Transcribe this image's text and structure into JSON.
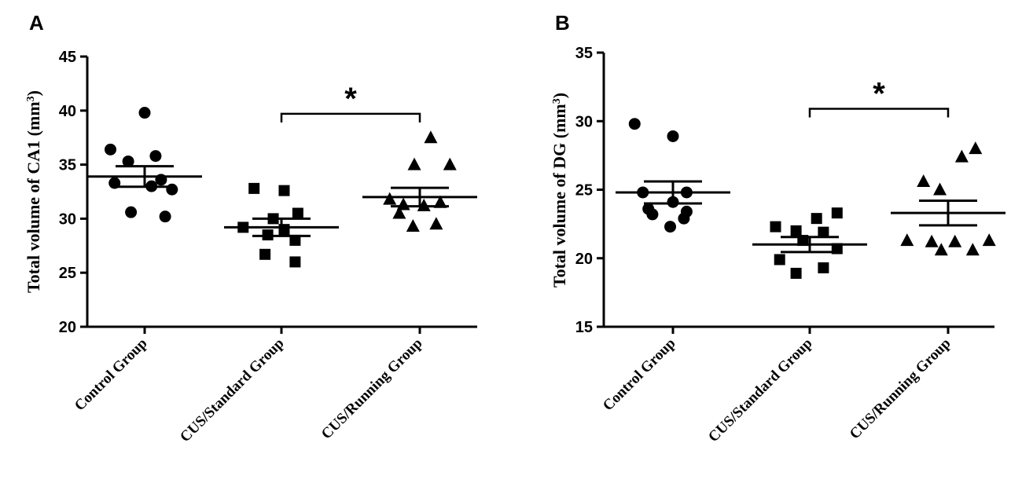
{
  "chart_data": [
    {
      "panel": "A",
      "type": "scatter",
      "ylabel": "Total volume of CA1 (mm",
      "ylabel_sup": "3",
      "ylabel_close": ")",
      "ylim": [
        20,
        45
      ],
      "yticks": [
        20,
        25,
        30,
        35,
        40,
        45
      ],
      "categories": [
        "Control Group",
        "CUS/Standard Group",
        "CUS/Running Group"
      ],
      "markers": [
        "circle",
        "square",
        "triangle"
      ],
      "series": [
        {
          "points": [
            [
              -0.25,
              36.4
            ],
            [
              0.0,
              39.8
            ],
            [
              0.08,
              35.8
            ],
            [
              -0.12,
              35.3
            ],
            [
              0.12,
              33.6
            ],
            [
              -0.22,
              33.3
            ],
            [
              0.05,
              33.0
            ],
            [
              0.2,
              32.7
            ],
            [
              -0.1,
              30.6
            ],
            [
              0.15,
              30.2
            ]
          ],
          "mean": 33.9,
          "sem": 0.95
        },
        {
          "points": [
            [
              -0.2,
              32.8
            ],
            [
              0.02,
              32.6
            ],
            [
              0.12,
              30.5
            ],
            [
              -0.06,
              30.0
            ],
            [
              0.02,
              29.0
            ],
            [
              -0.28,
              29.2
            ],
            [
              -0.1,
              28.5
            ],
            [
              0.1,
              28.0
            ],
            [
              -0.12,
              26.7
            ],
            [
              0.1,
              26.0
            ]
          ],
          "mean": 29.2,
          "sem": 0.8
        },
        {
          "points": [
            [
              0.08,
              37.5
            ],
            [
              -0.04,
              35.0
            ],
            [
              0.22,
              35.0
            ],
            [
              -0.22,
              31.8
            ],
            [
              0.15,
              31.5
            ],
            [
              -0.12,
              31.3
            ],
            [
              0.03,
              31.2
            ],
            [
              -0.15,
              30.5
            ],
            [
              0.12,
              29.5
            ],
            [
              -0.05,
              29.3
            ]
          ],
          "mean": 32.0,
          "sem": 0.85
        }
      ],
      "significance": {
        "from": 1,
        "to": 2,
        "label": "*",
        "y": 39.7
      }
    },
    {
      "panel": "B",
      "type": "scatter",
      "ylabel": "Total volume of DG (mm",
      "ylabel_sup": "3",
      "ylabel_close": ")",
      "ylim": [
        15,
        35
      ],
      "yticks": [
        15,
        20,
        25,
        30,
        35
      ],
      "categories": [
        "Control Group",
        "CUS/Standard Group",
        "CUS/Running Group"
      ],
      "markers": [
        "circle",
        "square",
        "triangle"
      ],
      "series": [
        {
          "points": [
            [
              -0.28,
              29.8
            ],
            [
              0.0,
              28.9
            ],
            [
              -0.22,
              24.8
            ],
            [
              0.1,
              24.8
            ],
            [
              0.0,
              24.1
            ],
            [
              -0.18,
              23.6
            ],
            [
              0.1,
              23.4
            ],
            [
              -0.15,
              23.2
            ],
            [
              0.08,
              22.9
            ],
            [
              -0.02,
              22.3
            ]
          ],
          "mean": 24.8,
          "sem": 0.8
        },
        {
          "points": [
            [
              0.2,
              23.3
            ],
            [
              0.05,
              22.9
            ],
            [
              -0.25,
              22.3
            ],
            [
              -0.1,
              22.0
            ],
            [
              0.1,
              21.9
            ],
            [
              -0.05,
              21.3
            ],
            [
              0.2,
              20.7
            ],
            [
              -0.22,
              19.9
            ],
            [
              0.1,
              19.3
            ],
            [
              -0.1,
              18.9
            ]
          ],
          "mean": 21.0,
          "sem": 0.55
        },
        {
          "points": [
            [
              0.2,
              28.0
            ],
            [
              0.1,
              27.4
            ],
            [
              -0.18,
              25.6
            ],
            [
              -0.06,
              25.0
            ],
            [
              -0.3,
              21.3
            ],
            [
              -0.12,
              21.2
            ],
            [
              0.05,
              21.2
            ],
            [
              0.3,
              21.3
            ],
            [
              -0.05,
              20.6
            ],
            [
              0.18,
              20.6
            ]
          ],
          "mean": 23.3,
          "sem": 0.9
        }
      ],
      "significance": {
        "from": 1,
        "to": 2,
        "label": "*",
        "y": 30.9
      }
    }
  ]
}
